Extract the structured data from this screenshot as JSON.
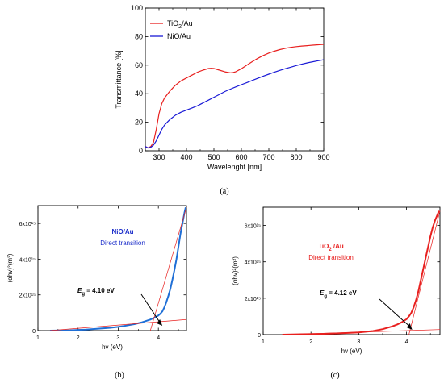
{
  "figure": {
    "panel_labels": [
      "(a)",
      "(b)",
      "(c)"
    ]
  },
  "chart_data": [
    {
      "type": "line",
      "panel": "(a)",
      "title": "",
      "xlabel": "Wavelenght [nm]",
      "ylabel": "Transmittance [%]",
      "xlim": [
        250,
        900
      ],
      "ylim": [
        0,
        100
      ],
      "xticks": [
        300,
        400,
        500,
        600,
        700,
        800,
        900
      ],
      "yticks": [
        0,
        20,
        40,
        60,
        80,
        100
      ],
      "grid": false,
      "legend_position": "top-left",
      "series": [
        {
          "name": "TiO2/Au",
          "color": "#e8201f",
          "x": [
            250,
            260,
            270,
            280,
            290,
            300,
            310,
            320,
            340,
            360,
            380,
            400,
            420,
            440,
            460,
            480,
            490,
            500,
            520,
            540,
            560,
            570,
            580,
            600,
            620,
            640,
            660,
            680,
            700,
            720,
            740,
            760,
            780,
            800,
            820,
            840,
            860,
            880,
            900
          ],
          "y": [
            3,
            2,
            3,
            6,
            15,
            26,
            33,
            37,
            42,
            46,
            49,
            51,
            53,
            55,
            56.5,
            57.6,
            57.8,
            57.6,
            56.5,
            55.3,
            54.6,
            54.8,
            55.4,
            57.5,
            60,
            62.5,
            64.8,
            66.8,
            68.5,
            69.8,
            70.9,
            71.8,
            72.5,
            73,
            73.4,
            73.7,
            74,
            74.3,
            74.6
          ]
        },
        {
          "name": "NiO/Au",
          "color": "#1a1ad6",
          "x": [
            250,
            260,
            270,
            280,
            290,
            300,
            310,
            320,
            340,
            360,
            380,
            400,
            420,
            440,
            460,
            480,
            500,
            520,
            540,
            560,
            580,
            600,
            620,
            640,
            660,
            680,
            700,
            720,
            740,
            760,
            780,
            800,
            820,
            840,
            860,
            880,
            900
          ],
          "y": [
            3,
            2,
            2.5,
            4,
            7,
            11,
            15,
            18,
            22,
            25,
            27,
            28.5,
            30,
            31.5,
            33.5,
            35.5,
            37.5,
            39.5,
            41.5,
            43.2,
            44.8,
            46.3,
            47.8,
            49.3,
            50.8,
            52.3,
            53.7,
            55,
            56.3,
            57.5,
            58.6,
            59.7,
            60.7,
            61.6,
            62.4,
            63.1,
            63.8
          ]
        }
      ]
    },
    {
      "type": "line",
      "panel": "(b)",
      "title": "",
      "xlabel": "hv (eV)",
      "ylabel": "(αhv)²(m²)",
      "xlim": [
        1,
        4.7
      ],
      "ylim": [
        0,
        7000000000000000.0
      ],
      "xticks": [
        1,
        2,
        3,
        4
      ],
      "yticks": [
        0,
        2000000000000000.0,
        4000000000000000.0,
        6000000000000000.0
      ],
      "ytick_labels": [
        "0",
        "2x10¹⁵",
        "4x10¹⁵",
        "6x10¹⁵"
      ],
      "grid": false,
      "annotations": [
        "NiO/Au",
        "Direct transition",
        "Eg = 4.10 eV"
      ],
      "bandgap_eV": 4.1,
      "series": [
        {
          "name": "NiO/Au",
          "color": "#1f6fd6",
          "x": [
            1.3,
            1.6,
            1.8,
            2.0,
            2.2,
            2.4,
            2.6,
            2.8,
            3.0,
            3.2,
            3.4,
            3.6,
            3.8,
            3.9,
            4.0,
            4.05,
            4.1,
            4.15,
            4.2,
            4.25,
            4.3,
            4.35,
            4.4,
            4.45,
            4.5,
            4.55,
            4.6,
            4.65,
            4.68
          ],
          "y": [
            0,
            10000000000000.0,
            20000000000000.0,
            40000000000000.0,
            60000000000000.0,
            90000000000000.0,
            120000000000000.0,
            160000000000000.0,
            210000000000000.0,
            280000000000000.0,
            360000000000000.0,
            470000000000000.0,
            620000000000000.0,
            720000000000000.0,
            850000000000000.0,
            950000000000000.0,
            1080000000000000.0,
            1300000000000000.0,
            1600000000000000.0,
            1950000000000000.0,
            2350000000000000.0,
            2850000000000000.0,
            3400000000000000.0,
            4000000000000000.0,
            4700000000000000.0,
            5400000000000000.0,
            6000000000000000.0,
            6600000000000000.0,
            6900000000000000.0
          ]
        }
      ],
      "fit_lines": [
        {
          "x": [
            3.8,
            4.7
          ],
          "y": [
            0,
            6900000000000000.0
          ]
        },
        {
          "x": [
            1.3,
            4.7
          ],
          "y": [
            0,
            620000000000000.0
          ]
        }
      ]
    },
    {
      "type": "line",
      "panel": "(c)",
      "title": "",
      "xlabel": "hv (eV)",
      "ylabel": "(αhv)²(m²)",
      "xlim": [
        1,
        4.7
      ],
      "ylim": [
        0,
        7000000000000000.0
      ],
      "xticks": [
        1,
        2,
        3,
        4
      ],
      "yticks": [
        0,
        2000000000000000.0,
        4000000000000000.0,
        6000000000000000.0
      ],
      "ytick_labels": [
        "0",
        "2x10¹⁵",
        "4x10¹⁵",
        "6x10¹⁵"
      ],
      "grid": false,
      "annotations": [
        "TiO2 /Au",
        "Direct transition",
        "Eg = 4.12 eV"
      ],
      "bandgap_eV": 4.12,
      "series": [
        {
          "name": "TiO2 /Au",
          "color": "#e8201f",
          "x": [
            1.4,
            1.8,
            2.2,
            2.6,
            3.0,
            3.3,
            3.5,
            3.7,
            3.8,
            3.9,
            4.0,
            4.05,
            4.1,
            4.15,
            4.2,
            4.25,
            4.3,
            4.35,
            4.4,
            4.45,
            4.5,
            4.55,
            4.6,
            4.65,
            4.68
          ],
          "y": [
            0,
            20000000000000.0,
            40000000000000.0,
            70000000000000.0,
            120000000000000.0,
            200000000000000.0,
            300000000000000.0,
            450000000000000.0,
            550000000000000.0,
            680000000000000.0,
            850000000000000.0,
            1000000000000000.0,
            1200000000000000.0,
            1500000000000000.0,
            1900000000000000.0,
            2400000000000000.0,
            3000000000000000.0,
            3600000000000000.0,
            4200000000000000.0,
            4800000000000000.0,
            5400000000000000.0,
            5900000000000000.0,
            6300000000000000.0,
            6600000000000000.0,
            6800000000000000.0
          ]
        }
      ],
      "fit_lines": [
        {
          "x": [
            4.05,
            4.7
          ],
          "y": [
            0,
            6800000000000000.0
          ]
        },
        {
          "x": [
            1.4,
            4.7
          ],
          "y": [
            0,
            280000000000000.0
          ]
        }
      ]
    }
  ]
}
